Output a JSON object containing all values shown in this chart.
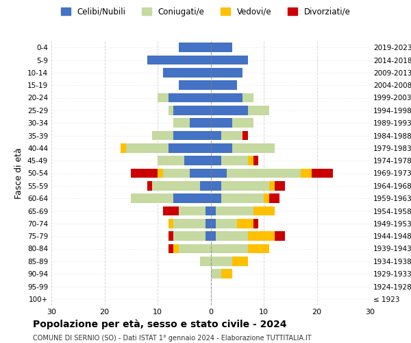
{
  "age_groups": [
    "100+",
    "95-99",
    "90-94",
    "85-89",
    "80-84",
    "75-79",
    "70-74",
    "65-69",
    "60-64",
    "55-59",
    "50-54",
    "45-49",
    "40-44",
    "35-39",
    "30-34",
    "25-29",
    "20-24",
    "15-19",
    "10-14",
    "5-9",
    "0-4"
  ],
  "birth_years": [
    "≤ 1923",
    "1924-1928",
    "1929-1933",
    "1934-1938",
    "1939-1943",
    "1944-1948",
    "1949-1953",
    "1954-1958",
    "1959-1963",
    "1964-1968",
    "1969-1973",
    "1974-1978",
    "1979-1983",
    "1984-1988",
    "1989-1993",
    "1994-1998",
    "1999-2003",
    "2004-2008",
    "2009-2013",
    "2014-2018",
    "2019-2023"
  ],
  "males": {
    "celibi": [
      0,
      0,
      0,
      0,
      0,
      1,
      1,
      1,
      7,
      2,
      4,
      5,
      8,
      7,
      4,
      7,
      8,
      6,
      9,
      12,
      6
    ],
    "coniugati": [
      0,
      0,
      0,
      2,
      6,
      6,
      6,
      5,
      8,
      9,
      5,
      5,
      8,
      4,
      3,
      1,
      2,
      0,
      0,
      0,
      0
    ],
    "vedovi": [
      0,
      0,
      0,
      0,
      1,
      0,
      1,
      0,
      0,
      0,
      1,
      0,
      1,
      0,
      0,
      0,
      0,
      0,
      0,
      0,
      0
    ],
    "divorziati": [
      0,
      0,
      0,
      0,
      1,
      1,
      0,
      3,
      0,
      1,
      5,
      0,
      0,
      0,
      0,
      0,
      0,
      0,
      0,
      0,
      0
    ]
  },
  "females": {
    "nubili": [
      0,
      0,
      0,
      0,
      0,
      1,
      1,
      1,
      2,
      2,
      3,
      2,
      4,
      2,
      4,
      7,
      6,
      5,
      6,
      7,
      4
    ],
    "coniugate": [
      0,
      0,
      2,
      4,
      7,
      6,
      4,
      7,
      8,
      9,
      14,
      5,
      8,
      4,
      4,
      4,
      2,
      0,
      0,
      0,
      0
    ],
    "vedove": [
      0,
      0,
      2,
      3,
      4,
      5,
      3,
      4,
      1,
      1,
      2,
      1,
      0,
      0,
      0,
      0,
      0,
      0,
      0,
      0,
      0
    ],
    "divorziate": [
      0,
      0,
      0,
      0,
      0,
      2,
      1,
      0,
      2,
      2,
      4,
      1,
      0,
      1,
      0,
      0,
      0,
      0,
      0,
      0,
      0
    ]
  },
  "colors": {
    "celibi": "#4472c4",
    "coniugati": "#c5d9a0",
    "vedovi": "#ffc000",
    "divorziati": "#cc0000"
  },
  "xlim": 30,
  "title": "Popolazione per età, sesso e stato civile - 2024",
  "subtitle": "COMUNE DI SERNIO (SO) - Dati ISTAT 1° gennaio 2024 - Elaborazione TUTTITALIA.IT",
  "ylabel_left": "Fasce di età",
  "legend_labels": [
    "Celibi/Nubili",
    "Coniugati/e",
    "Vedovi/e",
    "Divorziati/e"
  ],
  "bg_color": "#ffffff",
  "grid_color": "#cccccc"
}
